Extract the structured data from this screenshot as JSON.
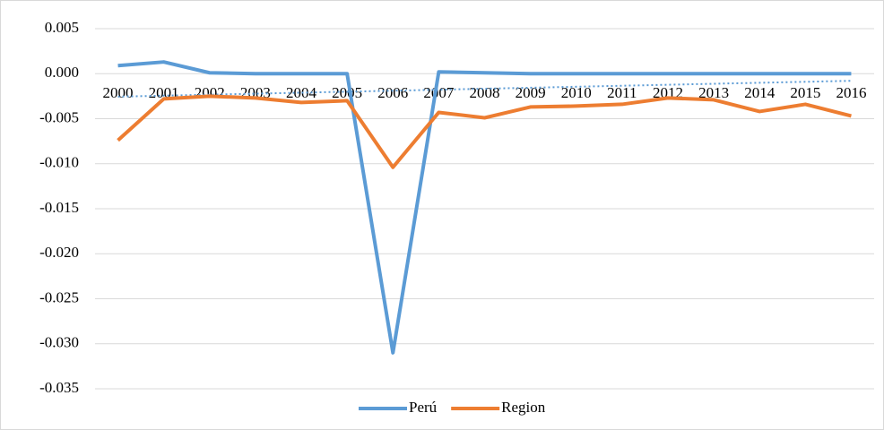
{
  "chart_data": {
    "type": "line",
    "categories": [
      "2000",
      "2001",
      "2002",
      "2003",
      "2004",
      "2005",
      "2006",
      "2007",
      "2008",
      "2009",
      "2010",
      "2011",
      "2012",
      "2013",
      "2014",
      "2015",
      "2016"
    ],
    "series": [
      {
        "name": "Perú",
        "color": "#5b9bd5",
        "trendline": "linear",
        "values": [
          0.0009,
          0.0013,
          0.0001,
          0.0,
          0.0,
          0.0,
          -0.031,
          0.0002,
          0.0001,
          0.0,
          0.0,
          0.0,
          0.0,
          0.0,
          0.0,
          0.0,
          0.0
        ]
      },
      {
        "name": "Region",
        "color": "#ed7d31",
        "values": [
          -0.0074,
          -0.0028,
          -0.0025,
          -0.0027,
          -0.0032,
          -0.003,
          -0.0104,
          -0.0043,
          -0.0049,
          -0.0037,
          -0.0036,
          -0.0034,
          -0.0027,
          -0.0029,
          -0.0042,
          -0.0034,
          -0.0047
        ]
      }
    ],
    "ylim": [
      -0.035,
      0.005
    ],
    "yticks": [
      0.005,
      {
        "value": 0,
        "label": "0.000"
      },
      -0.005,
      {
        "value": -0.01,
        "label": "-0.010"
      },
      -0.015,
      {
        "value": -0.02,
        "label": "-0.020"
      },
      -0.025,
      {
        "value": -0.03,
        "label": "-0.030"
      },
      -0.035
    ],
    "grid": true,
    "legend": "bottom"
  }
}
